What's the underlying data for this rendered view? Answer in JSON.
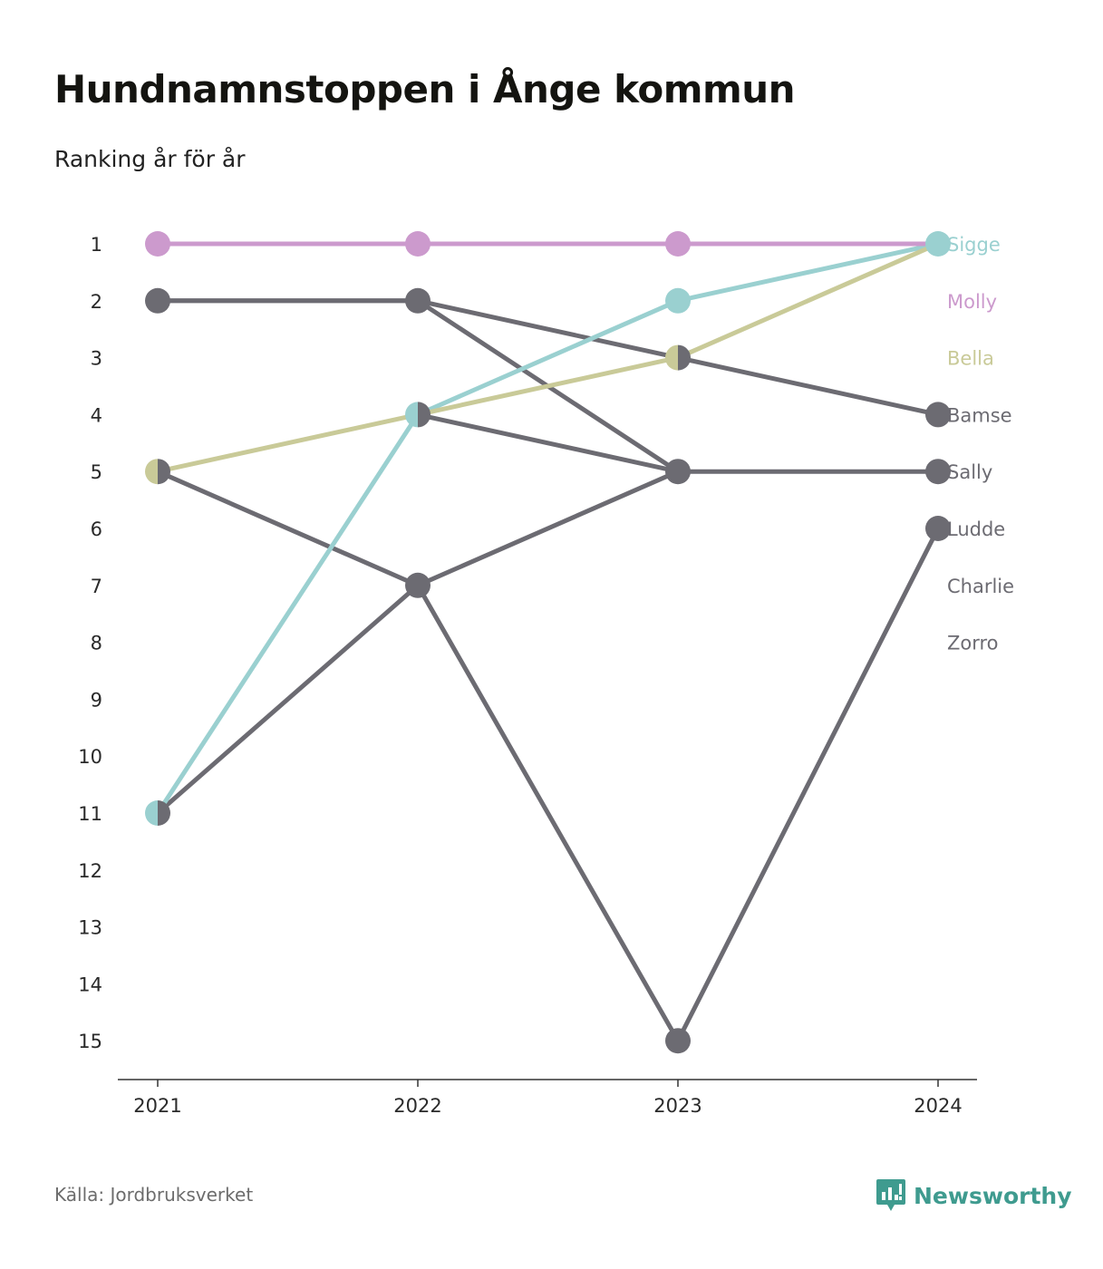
{
  "title": "Hundnamnstoppen i Ånge kommun",
  "subtitle": "Ranking år för år",
  "source": "Källa: Jordbruksverket",
  "brand": {
    "name": "Newsworthy",
    "logo_icon": "bar-chart-speech-bubble-icon",
    "color": "#3f9b8f"
  },
  "chart_data": {
    "type": "line",
    "subtype": "bump",
    "x": [
      "2021",
      "2022",
      "2023",
      "2024"
    ],
    "y_ticks": [
      "1",
      "2",
      "3",
      "4",
      "5",
      "6",
      "7",
      "8",
      "9",
      "10",
      "11",
      "12",
      "13",
      "14",
      "15"
    ],
    "ylim": [
      1,
      15
    ],
    "y_reversed": true,
    "grid": false,
    "legend": "right-end labels",
    "series": [
      {
        "name": "Sigge",
        "color": "#9ad0d0",
        "values": [
          11,
          4,
          2,
          1
        ]
      },
      {
        "name": "Molly",
        "color": "#cc9acd",
        "values": [
          1,
          1,
          1,
          1
        ]
      },
      {
        "name": "Bella",
        "color": "#c9ca98",
        "values": [
          5,
          4,
          3,
          1
        ]
      },
      {
        "name": "Bamse",
        "color": "#6c6b72",
        "values": [
          2,
          2,
          3,
          4
        ]
      },
      {
        "name": "Sally",
        "color": "#6c6b72",
        "values": [
          11,
          7,
          5,
          5
        ]
      },
      {
        "name": "Ludde",
        "color": "#6c6b72",
        "values": [
          5,
          7,
          15,
          6
        ]
      },
      {
        "name": "Charlie",
        "color": "#6c6b72",
        "values": [
          null,
          4,
          5,
          null
        ]
      },
      {
        "name": "Zorro",
        "color": "#6c6b72",
        "values": [
          2,
          2,
          5,
          null
        ]
      }
    ]
  }
}
